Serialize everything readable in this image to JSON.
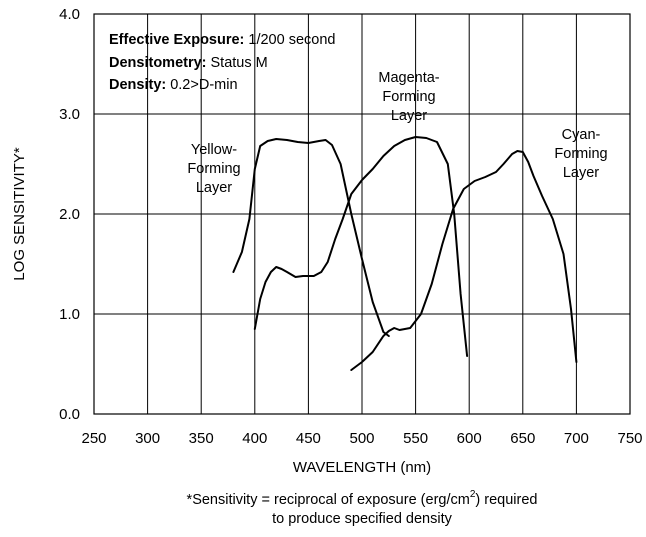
{
  "chart_data": {
    "type": "line",
    "xlabel": "WAVELENGTH (nm)",
    "ylabel": "LOG SENSITIVITY*",
    "xlim": [
      250,
      750
    ],
    "ylim": [
      0,
      4
    ],
    "x_ticks": [
      "250",
      "300",
      "350",
      "400",
      "450",
      "500",
      "550",
      "600",
      "650",
      "700",
      "750"
    ],
    "y_ticks": [
      "0.0",
      "1.0",
      "2.0",
      "3.0",
      "4.0"
    ],
    "grid": true,
    "annotations": [
      {
        "bold": "Effective Exposure:",
        "text": "1/200 second"
      },
      {
        "bold": "Densitometry:",
        "text": "Status M"
      },
      {
        "bold": "Density:",
        "text": "0.2>D-min"
      }
    ],
    "footnote": [
      "*Sensitivity = reciprocal of exposure (erg/cm",
      "2",
      ") required",
      "to produce specified density"
    ],
    "series": [
      {
        "name": "Yellow-Forming Layer",
        "label_lines": [
          "Yellow-",
          "Forming",
          "Layer"
        ],
        "x": [
          380,
          388,
          395,
          400,
          405,
          412,
          420,
          430,
          440,
          450,
          460,
          466,
          472,
          480,
          490,
          500,
          510,
          520,
          525
        ],
        "y": [
          1.42,
          1.62,
          1.95,
          2.45,
          2.68,
          2.73,
          2.75,
          2.74,
          2.72,
          2.71,
          2.73,
          2.74,
          2.69,
          2.5,
          2.0,
          1.55,
          1.12,
          0.82,
          0.78
        ]
      },
      {
        "name": "Magenta-Forming Layer",
        "label_lines": [
          "Magenta-",
          "Forming",
          "Layer"
        ],
        "x": [
          400,
          405,
          410,
          415,
          420,
          425,
          430,
          438,
          445,
          455,
          462,
          468,
          475,
          482,
          490,
          500,
          510,
          520,
          530,
          540,
          550,
          560,
          570,
          580,
          586,
          592,
          598
        ],
        "y": [
          0.85,
          1.15,
          1.32,
          1.42,
          1.47,
          1.45,
          1.42,
          1.37,
          1.38,
          1.38,
          1.42,
          1.52,
          1.75,
          1.95,
          2.2,
          2.34,
          2.45,
          2.58,
          2.68,
          2.74,
          2.77,
          2.76,
          2.72,
          2.5,
          2.0,
          1.2,
          0.58
        ]
      },
      {
        "name": "Cyan-Forming Layer",
        "label_lines": [
          "Cyan-",
          "Forming",
          "Layer"
        ],
        "x": [
          490,
          500,
          510,
          520,
          525,
          530,
          535,
          545,
          555,
          565,
          575,
          585,
          595,
          605,
          615,
          625,
          632,
          640,
          645,
          650,
          655,
          660,
          668,
          678,
          688,
          695,
          700
        ],
        "y": [
          0.44,
          0.52,
          0.62,
          0.78,
          0.83,
          0.86,
          0.84,
          0.86,
          1.0,
          1.3,
          1.7,
          2.05,
          2.25,
          2.33,
          2.37,
          2.42,
          2.5,
          2.6,
          2.63,
          2.62,
          2.52,
          2.38,
          2.18,
          1.95,
          1.6,
          1.05,
          0.52
        ]
      }
    ]
  }
}
